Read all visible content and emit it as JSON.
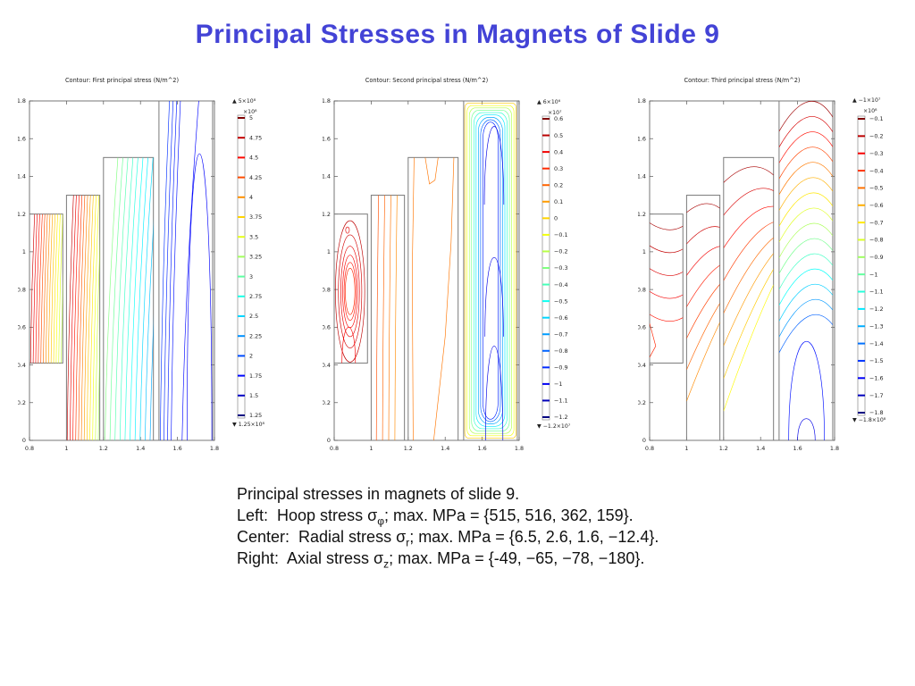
{
  "slide": {
    "title": "Principal Stresses in Magnets of Slide 9",
    "title_color": "#4343d6",
    "background": "#ffffff"
  },
  "caption": {
    "lines": [
      [
        {
          "t": "Principal stresses in magnets of slide 9."
        }
      ],
      [
        {
          "t": "Left:  Hoop stress σ"
        },
        {
          "t": "φ",
          "sub": true
        },
        {
          "t": "; max. MPa = {515, 516, 362, 159}."
        }
      ],
      [
        {
          "t": "Center:  Radial stress σ"
        },
        {
          "t": "r",
          "sub": true
        },
        {
          "t": "; max. MPa = {6.5, 2.6, 1.6, −12.4}."
        }
      ],
      [
        {
          "t": "Right:  Axial stress σ"
        },
        {
          "t": "z",
          "sub": true
        },
        {
          "t": "; max. MPa = {-49, −65, −78, −180}."
        }
      ]
    ]
  },
  "palette": {
    "type": "jet-rainbow",
    "stops": [
      "#00008f",
      "#0000ff",
      "#00ffff",
      "#80ff80",
      "#ffff00",
      "#ff0000",
      "#800000"
    ],
    "frame_color": "#555555",
    "magnet_outline_color": "#7a7a7a"
  },
  "chart_data": [
    {
      "type": "contour",
      "title": "Contour: First principal stress (N/m^2)",
      "stress_component": "Hoop stress σφ",
      "max_mpa": [
        515,
        516,
        362,
        159
      ],
      "xlim": [
        0.8,
        1.8
      ],
      "ylim": [
        0,
        1.8
      ],
      "x_ticks": [
        "0.8",
        "1",
        "1.2",
        "1.4",
        "1.6",
        "1.8"
      ],
      "y_ticks": [
        "0",
        "0.2",
        "0.4",
        "0.6",
        "0.8",
        "1",
        "1.2",
        "1.4",
        "1.6",
        "1.8"
      ],
      "magnets": [
        [
          0.8,
          0.41,
          0.98,
          1.2
        ],
        [
          1.0,
          0,
          1.18,
          1.3
        ],
        [
          1.2,
          0,
          1.47,
          1.5
        ],
        [
          1.5,
          0,
          1.79,
          1.8
        ]
      ],
      "colorbar": {
        "top": "▲ 5×10⁸",
        "scale": "×10⁸",
        "ticks": [
          "5",
          "4.75",
          "4.5",
          "4.25",
          "4",
          "3.75",
          "3.5",
          "3.25",
          "3",
          "2.75",
          "2.5",
          "2.25",
          "2",
          "1.75",
          "1.5",
          "1.25"
        ],
        "bottom": "▼ 1.25×10⁸"
      },
      "contours": [
        {
          "kind": "vlines",
          "rect": 0,
          "n": 13,
          "x0": 0.806,
          "x1": 0.972,
          "t0": 0.92,
          "t1": 0.56,
          "lean": 0.022
        },
        {
          "kind": "vlines",
          "rect": 1,
          "n": 12,
          "x0": 1.004,
          "x1": 1.172,
          "t0": 0.93,
          "t1": 0.54,
          "lean": 0.034
        },
        {
          "kind": "vlines",
          "rect": 2,
          "n": 10,
          "x0": 1.208,
          "x1": 1.452,
          "t0": 0.5,
          "t1": 0.29,
          "lean": 0.07
        },
        {
          "kind": "vlines",
          "rect": 3,
          "n": 4,
          "x0": 1.507,
          "x1": 1.566,
          "t0": 0.17,
          "t1": 0.14,
          "lean": 0.05
        },
        {
          "kind": "vlines",
          "rect": 3,
          "n": 1,
          "x0": 1.625,
          "x1": 1.625,
          "t0": 0.13,
          "t1": 0.13,
          "lean": 0.09
        },
        {
          "kind": "arch",
          "rect": 3,
          "x0": 1.652,
          "x1": 1.786,
          "ax": 1.742,
          "ay": 1.52,
          "y0": 0,
          "y1": 0,
          "t": 0.12
        }
      ]
    },
    {
      "type": "contour",
      "title": "Contour: Second principal stress (N/m^2)",
      "stress_component": "Radial stress σr",
      "max_mpa": [
        6.5,
        2.6,
        1.6,
        -12.4
      ],
      "xlim": [
        0.8,
        1.8
      ],
      "ylim": [
        0,
        1.8
      ],
      "x_ticks": [
        "0.8",
        "1",
        "1.2",
        "1.4",
        "1.6",
        "1.8"
      ],
      "y_ticks": [
        "0",
        "0.2",
        "0.4",
        "0.6",
        "0.8",
        "1",
        "1.2",
        "1.4",
        "1.6",
        "1.8"
      ],
      "magnets": [
        [
          0.8,
          0.41,
          0.98,
          1.2
        ],
        [
          1.0,
          0,
          1.18,
          1.3
        ],
        [
          1.2,
          0,
          1.47,
          1.5
        ],
        [
          1.5,
          0,
          1.79,
          1.8
        ]
      ],
      "colorbar": {
        "top": "▲ 6×10⁶",
        "scale": "×10⁷",
        "ticks": [
          "0.6",
          "0.5",
          "0.4",
          "0.3",
          "0.2",
          "0.1",
          "0",
          "−0.1",
          "−0.2",
          "−0.3",
          "−0.4",
          "−0.5",
          "−0.6",
          "−0.7",
          "−0.8",
          "−0.9",
          "−1",
          "−1.1",
          "−1.2"
        ],
        "bottom": "▼ −1.2×10⁷"
      },
      "contours": [
        {
          "kind": "rings",
          "rect": 0,
          "cx": 0.886,
          "cy": 0.79,
          "n": 6,
          "w": 0.158,
          "h": 0.75,
          "shrink": 0.8,
          "t0": 0.94,
          "t1": 0.84
        },
        {
          "kind": "rings",
          "rect": 0,
          "cx": 0.872,
          "cy": 1.115,
          "n": 1,
          "w": 0.02,
          "h": 0.034,
          "shrink": 1,
          "t0": 0.9,
          "t1": 0.9
        },
        {
          "kind": "arch",
          "rect": 0,
          "x0": 0.842,
          "x1": 0.915,
          "ax": 0.878,
          "ay": 0.6,
          "y0": 0.41,
          "y1": 0.41,
          "t": 0.88
        },
        {
          "kind": "vlines",
          "rect": 1,
          "n": 4,
          "x0": 1.028,
          "x1": 1.128,
          "t0": 0.8,
          "t1": 0.74,
          "lean": 0.012
        },
        {
          "kind": "poly",
          "rect": 2,
          "t": 0.76,
          "pts": [
            [
              1.227,
              0
            ],
            [
              1.222,
              0.9
            ],
            [
              1.232,
              1.5
            ]
          ]
        },
        {
          "kind": "poly",
          "rect": 2,
          "t": 0.76,
          "pts": [
            [
              1.292,
              1.5
            ],
            [
              1.315,
              1.36
            ],
            [
              1.345,
              1.38
            ],
            [
              1.362,
              1.5
            ]
          ]
        },
        {
          "kind": "poly",
          "rect": 2,
          "t": 0.76,
          "pts": [
            [
              1.447,
              1.5
            ],
            [
              1.432,
              1.05
            ],
            [
              1.4,
              0.55
            ],
            [
              1.338,
              0
            ]
          ]
        },
        {
          "kind": "rrings",
          "rect": 3,
          "n": 9,
          "t0": 0.68,
          "t1": 0.16
        },
        {
          "kind": "arch",
          "rect": 3,
          "x0": 1.612,
          "x1": 1.717,
          "ax": 1.664,
          "ay": 1.665,
          "y0": 1.25,
          "y1": 1.25,
          "t": 0.1
        },
        {
          "kind": "arch",
          "rect": 3,
          "x0": 1.615,
          "x1": 1.715,
          "ax": 1.664,
          "ay": 0.97,
          "y0": 0.55,
          "y1": 0.55,
          "t": 0.1
        },
        {
          "kind": "arch",
          "rect": 3,
          "x0": 1.618,
          "x1": 1.712,
          "ax": 1.664,
          "ay": 0.5,
          "y0": 0,
          "y1": 0,
          "t": 0.1
        }
      ]
    },
    {
      "type": "contour",
      "title": "Contour: Third principal stress (N/m^2)",
      "stress_component": "Axial stress σz",
      "max_mpa": [
        -49,
        -65,
        -78,
        -180
      ],
      "xlim": [
        0.8,
        1.8
      ],
      "ylim": [
        0,
        1.8
      ],
      "x_ticks": [
        "0.8",
        "1",
        "1.2",
        "1.4",
        "1.6",
        "1.8"
      ],
      "y_ticks": [
        "0",
        "0.2",
        "0.4",
        "0.6",
        "0.8",
        "1",
        "1.2",
        "1.4",
        "1.6",
        "1.8"
      ],
      "magnets": [
        [
          0.8,
          0.41,
          0.98,
          1.2
        ],
        [
          1.0,
          0,
          1.18,
          1.3
        ],
        [
          1.2,
          0,
          1.47,
          1.5
        ],
        [
          1.5,
          0,
          1.79,
          1.8
        ]
      ],
      "colorbar": {
        "top": "▲ −1×10⁷",
        "scale": "×10⁸",
        "ticks": [
          "−0.1",
          "−0.2",
          "−0.3",
          "−0.4",
          "−0.5",
          "−0.6",
          "−0.7",
          "−0.8",
          "−0.9",
          "−1",
          "−1.1",
          "−1.2",
          "−1.3",
          "−1.4",
          "−1.5",
          "−1.6",
          "−1.7",
          "−1.8"
        ],
        "bottom": "▼ −1.8×10⁸"
      },
      "contours": [
        {
          "kind": "harcs",
          "rect": 0,
          "n": 5,
          "yTop": 1.125,
          "yBot": 0.64,
          "t0": 0.96,
          "t1": 0.86,
          "bulge": -0.022,
          "tilt": 0
        },
        {
          "kind": "poly",
          "rect": 0,
          "t": 0.84,
          "pts": [
            [
              0.8,
              0.62
            ],
            [
              0.833,
              0.5
            ],
            [
              0.8,
              0.44
            ]
          ]
        },
        {
          "kind": "harcs",
          "rect": 1,
          "n": 7,
          "yTop": 1.245,
          "yBot": 0.42,
          "t0": 0.96,
          "t1": 0.74,
          "bulge": 0.028,
          "tilt": 0.22
        },
        {
          "kind": "harcs",
          "rect": 2,
          "n": 8,
          "yTop": 1.432,
          "yBot": 0.5,
          "t0": 0.96,
          "t1": 0.63,
          "bulge": 0.05,
          "tilt": 0.35
        },
        {
          "kind": "harcs",
          "rect": 3,
          "n": 15,
          "yTop": 1.762,
          "yBot": 0.62,
          "t0": 0.97,
          "t1": 0.22,
          "bulge": 0.095,
          "tilt": 0.04
        },
        {
          "kind": "arch",
          "rect": 3,
          "x0": 1.552,
          "x1": 1.745,
          "ax": 1.652,
          "ay": 0.525,
          "y0": 0,
          "y1": 0,
          "t": 0.14
        },
        {
          "kind": "arch",
          "rect": 3,
          "x0": 1.6,
          "x1": 1.695,
          "ax": 1.645,
          "ay": 0.115,
          "y0": 0,
          "y1": 0,
          "t": 0.1
        }
      ]
    }
  ]
}
